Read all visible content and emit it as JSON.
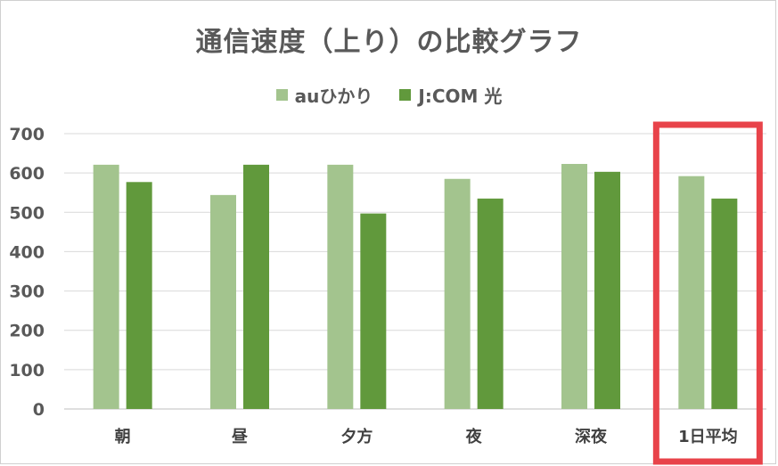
{
  "chart_data": {
    "type": "bar",
    "title": "通信速度（上り）の比較グラフ",
    "categories": [
      "朝",
      "昼",
      "夕方",
      "夜",
      "深夜",
      "1日平均"
    ],
    "series": [
      {
        "name": "auひかり",
        "color": "#a3c48e",
        "values": [
          621,
          544,
          621,
          585,
          623,
          592
        ]
      },
      {
        "name": "J:COM 光",
        "color": "#61993c",
        "values": [
          577,
          621,
          497,
          535,
          603,
          535
        ]
      }
    ],
    "ylim": [
      0,
      700
    ],
    "yticks": [
      0,
      100,
      200,
      300,
      400,
      500,
      600,
      700
    ],
    "grid": true,
    "legend_position": "top",
    "highlight": {
      "category": "1日平均",
      "color": "#e8434a"
    }
  }
}
